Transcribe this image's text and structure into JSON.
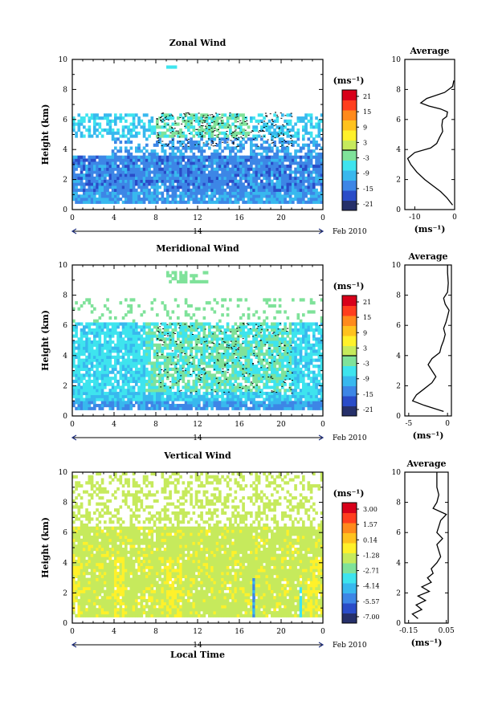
{
  "chart_data": [
    {
      "type": "heatmap",
      "title": "Zonal Wind",
      "ylabel": "Height (km)",
      "unit_label": "(ms⁻¹)",
      "x_ticks": [
        "0",
        "4",
        "8",
        "12",
        "16",
        "20",
        "0"
      ],
      "x_range": [
        0,
        24
      ],
      "y_ticks": [
        "0",
        "2",
        "4",
        "6",
        "8",
        "10"
      ],
      "y_range": [
        0,
        10
      ],
      "date_mark": "14",
      "date_label": "Feb 2010",
      "colorbar_ticks": [
        "21",
        "15",
        "9",
        "3",
        "-3",
        "-9",
        "-15",
        "-21"
      ],
      "colorbar_range": [
        -24,
        24
      ],
      "colormap": [
        "#26306a",
        "#2a4cc8",
        "#3d86e6",
        "#38b8ee",
        "#3ee4ee",
        "#7fe29a",
        "#c6ea5c",
        "#fff12a",
        "#ffc21e",
        "#ff8a1c",
        "#ff3e1e",
        "#d8001a"
      ],
      "dominant_color": "#3d86e6",
      "average": {
        "title": "Average",
        "xlabel": "(ms⁻¹)",
        "x_ticks": [
          "-10",
          "0"
        ],
        "x_range": [
          -12.5,
          0
        ],
        "y_ticks": [
          "0",
          "2",
          "4",
          "6",
          "8",
          "10"
        ],
        "y_range": [
          0,
          10
        ],
        "profile": {
          "heights": [
            0.3,
            0.8,
            1.2,
            1.6,
            2.0,
            2.5,
            3.0,
            3.4,
            3.8,
            4.1,
            4.4,
            4.8,
            5.2,
            5.6,
            6.0,
            6.2,
            6.5,
            6.7,
            6.9,
            7.1,
            7.4,
            7.8,
            8.0,
            8.2,
            8.6
          ],
          "values": [
            -0.5,
            -2.0,
            -3.5,
            -5.5,
            -7.5,
            -9.5,
            -11.0,
            -11.8,
            -10.0,
            -6.0,
            -4.5,
            -3.8,
            -3.0,
            -3.2,
            -3.0,
            -2.0,
            -1.8,
            -3.5,
            -6.5,
            -8.5,
            -7.0,
            -2.5,
            -1.5,
            -0.5,
            -0.2
          ]
        }
      }
    },
    {
      "type": "heatmap",
      "title": "Meridional Wind",
      "ylabel": "Height (km)",
      "unit_label": "(ms⁻¹)",
      "x_ticks": [
        "0",
        "4",
        "8",
        "12",
        "16",
        "20",
        "0"
      ],
      "x_range": [
        0,
        24
      ],
      "y_ticks": [
        "0",
        "2",
        "4",
        "6",
        "8",
        "10"
      ],
      "y_range": [
        0,
        10
      ],
      "date_mark": "14",
      "date_label": "Feb 2010",
      "colorbar_ticks": [
        "21",
        "15",
        "9",
        "3",
        "-3",
        "-9",
        "-15",
        "-21"
      ],
      "colorbar_range": [
        -24,
        24
      ],
      "colormap": [
        "#26306a",
        "#2a4cc8",
        "#3d86e6",
        "#38b8ee",
        "#3ee4ee",
        "#7fe29a",
        "#c6ea5c",
        "#fff12a",
        "#ffc21e",
        "#ff8a1c",
        "#ff3e1e",
        "#d8001a"
      ],
      "dominant_color": "#3ee4ee",
      "average": {
        "title": "Average",
        "xlabel": "(ms⁻¹)",
        "x_ticks": [
          "-5",
          "0"
        ],
        "x_range": [
          -5.5,
          0.5
        ],
        "y_ticks": [
          "0",
          "2",
          "4",
          "6",
          "8",
          "10"
        ],
        "y_range": [
          0,
          10
        ],
        "profile": {
          "heights": [
            0.3,
            0.7,
            1.0,
            1.4,
            1.8,
            2.2,
            2.6,
            3.0,
            3.4,
            3.8,
            4.2,
            4.6,
            5.0,
            5.4,
            5.8,
            6.2,
            6.6,
            7.0,
            7.4,
            7.8,
            8.2,
            8.8,
            9.5,
            10.0
          ],
          "values": [
            -0.5,
            -3.0,
            -4.5,
            -4.0,
            -3.0,
            -2.0,
            -1.5,
            -2.0,
            -2.5,
            -2.0,
            -1.0,
            -0.8,
            -0.5,
            -0.3,
            -0.5,
            -0.2,
            0.0,
            0.2,
            -0.3,
            -0.5,
            0.0,
            0.1,
            0.0,
            0.0
          ]
        }
      }
    },
    {
      "type": "heatmap",
      "title": "Vertical Wind",
      "ylabel": "Height (km)",
      "xlabel": "Local Time",
      "unit_label": "(ms⁻¹)",
      "x_ticks": [
        "0",
        "4",
        "8",
        "12",
        "16",
        "20",
        "0"
      ],
      "x_range": [
        0,
        24
      ],
      "y_ticks": [
        "0",
        "2",
        "4",
        "6",
        "8",
        "10"
      ],
      "y_range": [
        0,
        10
      ],
      "date_mark": "14",
      "date_label": "Feb 2010",
      "colorbar_ticks": [
        "3.00",
        "1.57",
        "0.14",
        "-1.28",
        "-2.71",
        "-4.14",
        "-5.57",
        "-7.00"
      ],
      "colorbar_range": [
        -8.0,
        4.0
      ],
      "colormap": [
        "#26306a",
        "#2a4cc8",
        "#3d86e6",
        "#38b8ee",
        "#3ee4ee",
        "#7fe29a",
        "#c6ea5c",
        "#fff12a",
        "#ffc21e",
        "#ff8a1c",
        "#ff3e1e",
        "#d8001a"
      ],
      "dominant_color": "#c6ea5c",
      "average": {
        "title": "Average",
        "xlabel": "(ms⁻¹)",
        "x_ticks": [
          "-0.15",
          "0.05"
        ],
        "x_range": [
          -0.17,
          0.06
        ],
        "y_ticks": [
          "0",
          "2",
          "4",
          "6",
          "8",
          "10"
        ],
        "y_range": [
          0,
          10
        ],
        "profile": {
          "heights": [
            0.3,
            0.6,
            0.9,
            1.2,
            1.5,
            1.8,
            2.1,
            2.4,
            2.7,
            3.0,
            3.3,
            3.6,
            4.0,
            4.4,
            4.8,
            5.2,
            5.6,
            6.0,
            6.4,
            6.8,
            7.2,
            7.6,
            8.0,
            8.5,
            9.0,
            9.5,
            10.0
          ],
          "values": [
            -0.1,
            -0.13,
            -0.08,
            -0.11,
            -0.06,
            -0.1,
            -0.04,
            -0.08,
            -0.03,
            -0.05,
            -0.02,
            -0.03,
            0.0,
            0.02,
            0.01,
            0.0,
            0.03,
            0.0,
            0.01,
            0.02,
            0.05,
            -0.02,
            0.0,
            0.01,
            0.0,
            0.0,
            0.0
          ]
        }
      }
    }
  ]
}
